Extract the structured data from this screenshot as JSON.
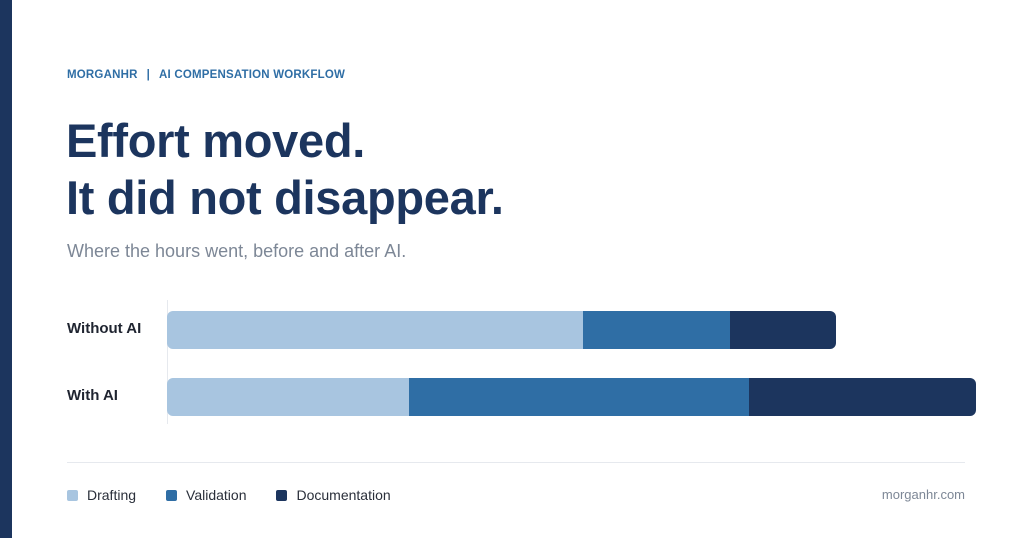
{
  "header": {
    "brand": "MORGANHR",
    "separator": "|",
    "section": "AI COMPENSATION WORKFLOW"
  },
  "headline": {
    "line1": "Effort moved.",
    "line2": "It did not disappear."
  },
  "subtitle": "Where the hours went, before and after AI.",
  "colors": {
    "drafting": "#a8c5e0",
    "validation": "#2f6ea5",
    "documentation": "#1c355e",
    "accent": "#1c355e"
  },
  "chart_data": {
    "type": "bar",
    "orientation": "horizontal",
    "stacked": true,
    "categories": [
      "Without AI",
      "With AI"
    ],
    "series": [
      {
        "name": "Drafting",
        "values": [
          55,
          32
        ]
      },
      {
        "name": "Validation",
        "values": [
          19.5,
          45
        ]
      },
      {
        "name": "Documentation",
        "values": [
          14,
          30
        ]
      }
    ],
    "xlim": [
      0,
      114
    ],
    "grid": false,
    "legend_position": "bottom-left"
  },
  "footer": {
    "url": "morganhr.com"
  }
}
